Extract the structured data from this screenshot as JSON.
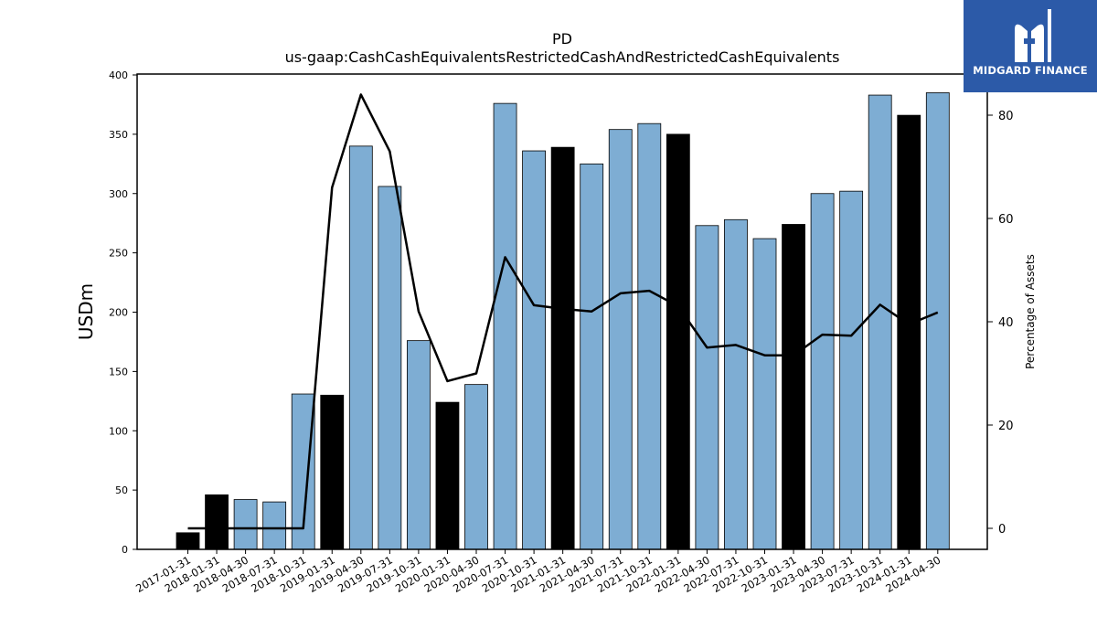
{
  "chart_data": {
    "type": "bar",
    "title": "PD",
    "subtitle": "us-gaap:CashCashEquivalentsRestrictedCashAndRestrictedCashEquivalents",
    "ylabel": "USDm",
    "y2label": "Percentage of Assets",
    "ylim": [
      0,
      400
    ],
    "y2lim": [
      -4,
      87
    ],
    "yticks": [
      0,
      50,
      100,
      150,
      200,
      250,
      300,
      350,
      400
    ],
    "y2ticks": [
      0,
      20,
      40,
      60,
      80
    ],
    "categories": [
      "2017-01-31",
      "2018-01-31",
      "2018-04-30",
      "2018-07-31",
      "2018-10-31",
      "2019-01-31",
      "2019-04-30",
      "2019-07-31",
      "2019-10-31",
      "2020-01-31",
      "2020-04-30",
      "2020-07-31",
      "2020-10-31",
      "2021-01-31",
      "2021-04-30",
      "2021-07-31",
      "2021-10-31",
      "2022-01-31",
      "2022-04-30",
      "2022-07-31",
      "2022-10-31",
      "2023-01-31",
      "2023-04-30",
      "2023-07-31",
      "2023-10-31",
      "2024-01-31",
      "2024-04-30"
    ],
    "series": [
      {
        "type": "bar",
        "values": [
          14,
          46,
          42,
          40,
          131,
          130,
          340,
          306,
          176,
          124,
          139,
          376,
          336,
          339,
          325,
          354,
          359,
          350,
          273,
          278,
          262,
          274,
          300,
          302,
          383,
          366,
          385
        ],
        "fiscal_year_end": [
          true,
          true,
          false,
          false,
          false,
          true,
          false,
          false,
          false,
          true,
          false,
          false,
          false,
          true,
          false,
          false,
          false,
          true,
          false,
          false,
          false,
          true,
          false,
          false,
          false,
          true,
          false
        ]
      },
      {
        "type": "line",
        "axis": "right",
        "values": [
          0,
          0,
          0,
          0,
          0,
          66,
          84,
          73,
          42,
          28.5,
          30,
          52.5,
          43.2,
          42.5,
          42,
          45.5,
          46,
          43,
          35,
          35.5,
          33.5,
          33.5,
          37.5,
          37.3,
          43.3,
          39.5,
          41.8
        ]
      }
    ],
    "colors": {
      "bar": "#7eadd3",
      "bar_fiscal_year": "#000000",
      "line": "#000000"
    },
    "legend": "none",
    "grid": false
  },
  "logo": {
    "name": "MIDGARD FINANCE",
    "background": "#2c5aa8",
    "icon": "mh-monogram-icon"
  }
}
